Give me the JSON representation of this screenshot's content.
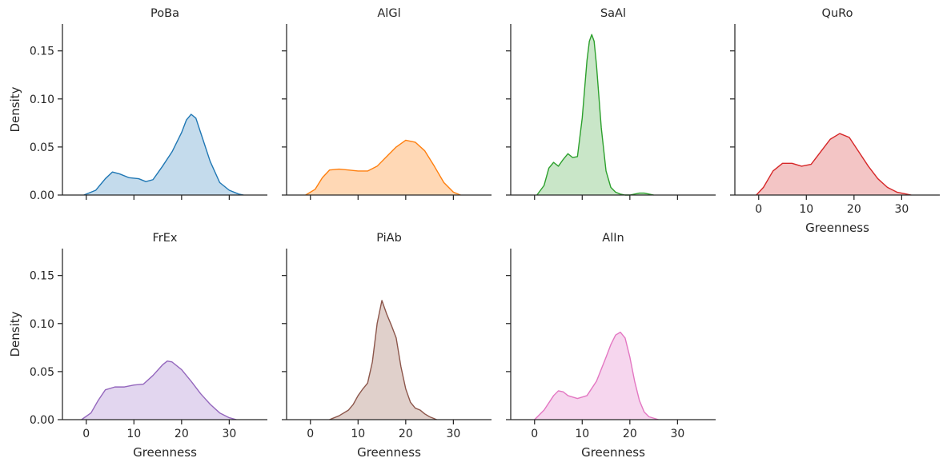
{
  "chart_data": {
    "type": "area",
    "subtype": "kde",
    "layout": {
      "rows": 2,
      "cols": 4
    },
    "xlabel": "Greenness",
    "ylabel": "Density",
    "xlim": [
      -5,
      38
    ],
    "ylim": [
      0,
      0.178
    ],
    "xticks": [
      0,
      10,
      20,
      30
    ],
    "yticks": [
      0.0,
      0.05,
      0.1,
      0.15
    ],
    "ytick_labels": [
      "0.00",
      "0.05",
      "0.10",
      "0.15"
    ],
    "panels": [
      {
        "title": "PoBa",
        "color": "#1f77b4",
        "fill": "#c4dbec",
        "x": [
          -0.5,
          2,
          4,
          5.5,
          7,
          9,
          11,
          12.5,
          14,
          16,
          18,
          20,
          21,
          22,
          23,
          24,
          26,
          28,
          30,
          32,
          33
        ],
        "y": [
          0.0,
          0.005,
          0.017,
          0.024,
          0.022,
          0.018,
          0.017,
          0.014,
          0.016,
          0.03,
          0.045,
          0.065,
          0.078,
          0.084,
          0.08,
          0.065,
          0.035,
          0.013,
          0.005,
          0.001,
          0.0
        ]
      },
      {
        "title": "AlGl",
        "color": "#ff7f0e",
        "fill": "#ffd8b5",
        "x": [
          -1,
          1,
          2.5,
          4,
          6,
          8,
          10,
          12,
          14,
          16,
          18,
          20,
          22,
          24,
          26,
          28,
          30,
          31.5
        ],
        "y": [
          0.0,
          0.006,
          0.018,
          0.026,
          0.027,
          0.026,
          0.025,
          0.025,
          0.03,
          0.04,
          0.05,
          0.057,
          0.055,
          0.046,
          0.03,
          0.013,
          0.003,
          0.0
        ]
      },
      {
        "title": "SaAl",
        "color": "#2ca02c",
        "fill": "#c9e6c8",
        "x": [
          0.5,
          2,
          3,
          4,
          5,
          6,
          7,
          8,
          9,
          10,
          11,
          11.5,
          12,
          12.5,
          13,
          14,
          15,
          16,
          17,
          18,
          19,
          20,
          22,
          23,
          24,
          25
        ],
        "y": [
          0.0,
          0.01,
          0.028,
          0.034,
          0.03,
          0.037,
          0.043,
          0.039,
          0.04,
          0.08,
          0.14,
          0.16,
          0.167,
          0.16,
          0.135,
          0.07,
          0.025,
          0.008,
          0.003,
          0.001,
          0.0,
          0.0,
          0.002,
          0.002,
          0.001,
          0.0
        ]
      },
      {
        "title": "QuRo",
        "color": "#d62728",
        "fill": "#f3c5c5",
        "x": [
          -0.5,
          1,
          3,
          5,
          7,
          9,
          11,
          13,
          15,
          17,
          19,
          21,
          23,
          25,
          27,
          29,
          31,
          32
        ],
        "y": [
          0.0,
          0.008,
          0.025,
          0.033,
          0.033,
          0.03,
          0.032,
          0.045,
          0.058,
          0.064,
          0.06,
          0.045,
          0.03,
          0.017,
          0.008,
          0.003,
          0.001,
          0.0
        ]
      },
      {
        "title": "FrEx",
        "color": "#9467bd",
        "fill": "#e2d6ef",
        "x": [
          -1,
          1,
          2.5,
          4,
          6,
          8,
          10,
          12,
          14,
          16,
          17,
          18,
          20,
          22,
          24,
          26,
          28,
          30,
          31.5
        ],
        "y": [
          0.0,
          0.007,
          0.02,
          0.031,
          0.034,
          0.034,
          0.036,
          0.037,
          0.046,
          0.057,
          0.061,
          0.06,
          0.052,
          0.04,
          0.027,
          0.016,
          0.007,
          0.002,
          0.0
        ]
      },
      {
        "title": "PiAb",
        "color": "#8c564b",
        "fill": "#e0d0cb",
        "x": [
          4,
          6,
          8,
          9,
          10,
          11,
          12,
          13,
          14,
          15,
          16,
          17,
          18,
          19,
          20,
          21,
          22,
          23,
          24,
          25,
          26.5
        ],
        "y": [
          0.0,
          0.004,
          0.01,
          0.016,
          0.025,
          0.032,
          0.038,
          0.06,
          0.1,
          0.124,
          0.11,
          0.098,
          0.085,
          0.055,
          0.032,
          0.018,
          0.012,
          0.01,
          0.006,
          0.003,
          0.0
        ]
      },
      {
        "title": "AlIn",
        "color": "#e377c2",
        "fill": "#f6d6ee",
        "x": [
          0,
          2,
          4,
          5,
          6,
          7,
          9,
          11,
          13,
          15,
          16,
          17,
          18,
          19,
          20,
          21,
          22,
          23,
          24,
          26
        ],
        "y": [
          0.0,
          0.01,
          0.025,
          0.03,
          0.029,
          0.025,
          0.022,
          0.025,
          0.04,
          0.065,
          0.078,
          0.088,
          0.091,
          0.085,
          0.065,
          0.04,
          0.02,
          0.008,
          0.003,
          0.0
        ]
      }
    ]
  }
}
